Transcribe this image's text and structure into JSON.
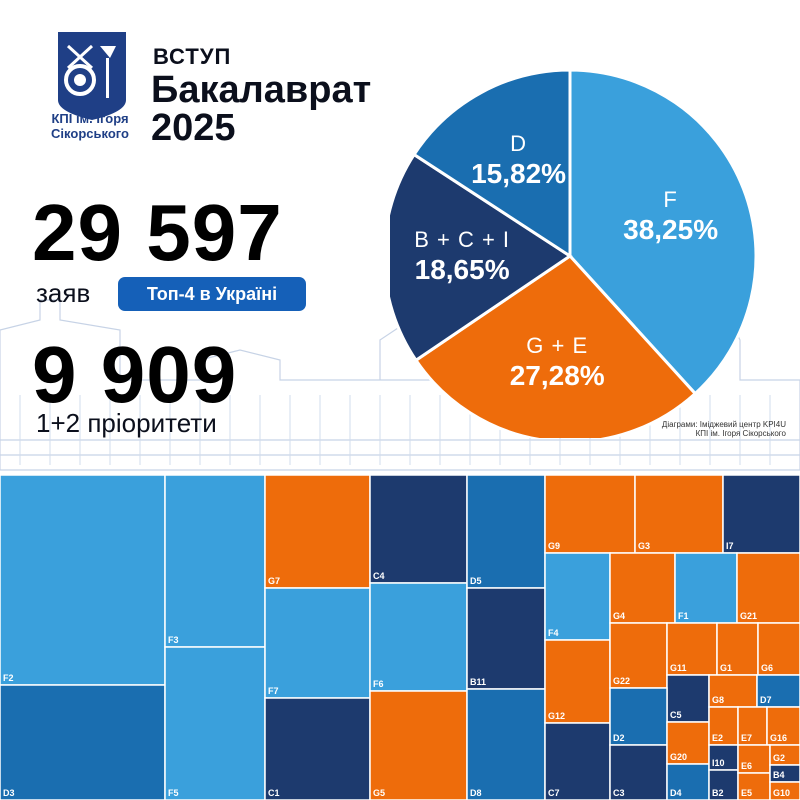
{
  "header": {
    "logo_text_line1": "КПІ ім. Ігоря",
    "logo_text_line2": "Сікорського",
    "title_line1": "ВСТУП",
    "title_line2": "Бакалаврат",
    "title_line3": "2025"
  },
  "stats": {
    "applications_value": "29 597",
    "applications_label": "заяв",
    "badge": "Топ-4 в Україні",
    "priority_value": "9 909",
    "priority_label": "1+2 пріоритети"
  },
  "credit": {
    "line1": "Діаграми: Іміджевий центр KPI4U",
    "line2": "КПІ ім. Ігоря Сікорського"
  },
  "colors": {
    "light_blue": "#3aa0dc",
    "mid_blue": "#1a6eb0",
    "dark_blue": "#1d3a6e",
    "orange": "#ee6c0b",
    "badge_blue": "#1560b8"
  },
  "chart_data": [
    {
      "type": "pie",
      "slices": [
        {
          "label": "F",
          "value": 38.25,
          "text": "38,25%",
          "color": "#3aa0dc"
        },
        {
          "label": "G + E",
          "value": 27.28,
          "text": "27,28%",
          "color": "#ee6c0b"
        },
        {
          "label": "B + C + I",
          "value": 18.65,
          "text": "18,65%",
          "color": "#1d3a6e"
        },
        {
          "label": "D",
          "value": 15.82,
          "text": "15,82%",
          "color": "#1a6eb0"
        }
      ]
    },
    {
      "type": "treemap",
      "cells": [
        "F2",
        "D3",
        "F3",
        "F5",
        "G7",
        "F7",
        "C1",
        "C4",
        "F6",
        "G5",
        "D5",
        "B11",
        "D8",
        "G9",
        "G3",
        "I7",
        "F4",
        "G12",
        "C7",
        "G4",
        "F1",
        "G21",
        "G22",
        "G11",
        "G1",
        "G6",
        "C5",
        "G8",
        "D7",
        "D2",
        "C3",
        "G20",
        "D4",
        "E2",
        "E7",
        "G16",
        "I10",
        "B2",
        "E6",
        "E5",
        "G2",
        "B4",
        "G10"
      ]
    }
  ]
}
